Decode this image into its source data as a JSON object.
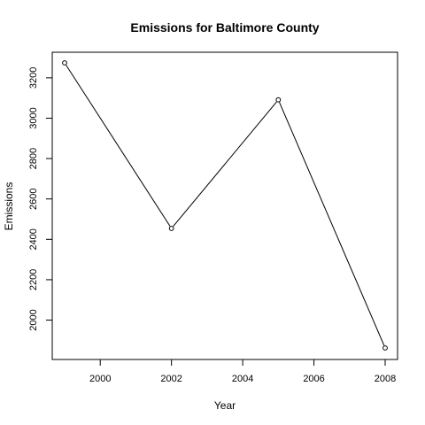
{
  "chart_data": {
    "type": "line",
    "title": "Emissions for Baltimore County",
    "xlabel": "Year",
    "ylabel": "Emissions",
    "x": [
      1999,
      2002,
      2005,
      2008
    ],
    "y": [
      3274,
      2454,
      3091,
      1862
    ],
    "xlim": [
      1999,
      2008
    ],
    "ylim": [
      1862,
      3274
    ],
    "xticks": [
      2000,
      2002,
      2004,
      2006,
      2008
    ],
    "yticks": [
      2000,
      2200,
      2400,
      2600,
      2800,
      3000,
      3200
    ],
    "xtick_labels": [
      "2000",
      "2002",
      "2004",
      "2006",
      "2008"
    ],
    "ytick_labels": [
      "2000",
      "2200",
      "2400",
      "2600",
      "2800",
      "3000",
      "3200"
    ],
    "marker": "open-circle",
    "line_color": "#000000",
    "grid": false,
    "legend": "none"
  }
}
